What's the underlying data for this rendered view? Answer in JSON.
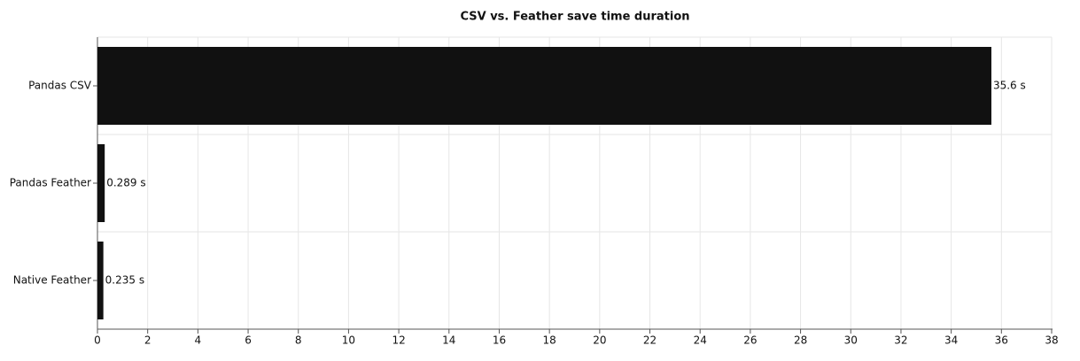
{
  "chart_data": {
    "type": "barh",
    "title": "CSV vs. Feather save time duration",
    "categories": [
      "Pandas CSV",
      "Pandas Feather",
      "Native Feather"
    ],
    "values": [
      35.6,
      0.289,
      0.235
    ],
    "value_labels": [
      "35.6 s",
      "0.289 s",
      "0.235 s"
    ],
    "color": "#111111",
    "xlim": [
      0,
      38
    ],
    "xticks": [
      0,
      2,
      4,
      6,
      8,
      10,
      12,
      14,
      16,
      18,
      20,
      22,
      24,
      26,
      28,
      30,
      32,
      34,
      36,
      38
    ],
    "grid": true
  }
}
